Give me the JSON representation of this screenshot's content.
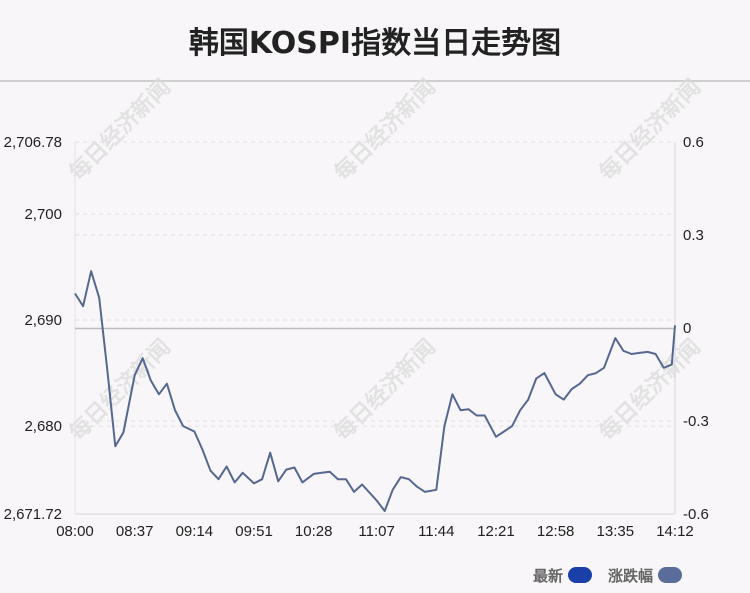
{
  "title": "韩国KOSPI指数当日走势图",
  "watermark": "每日经济新闻",
  "colors": {
    "latest": "#1a3fa8",
    "change": "#5a6d9a",
    "line": "#56688f",
    "baseline": "#bdbdbd",
    "grid": "#e2dfe2"
  },
  "legend": {
    "latest_label": "最新",
    "change_label": "涨跌幅"
  },
  "chart_data": {
    "type": "line",
    "xlabel": "",
    "ylabel": "",
    "x_ticks": [
      "08:00",
      "08:37",
      "09:14",
      "09:51",
      "10:28",
      "11:07",
      "11:44",
      "12:21",
      "12:58",
      "13:35",
      "14:12"
    ],
    "y_left_ticks": [
      "2,706.78",
      "2,700",
      "2,690",
      "2,680",
      "2,671.72"
    ],
    "y_left_tick_values": [
      2706.78,
      2700,
      2690,
      2680,
      2671.72
    ],
    "y_right_ticks": [
      "0.6",
      "0.3",
      "0",
      "-0.3",
      "-0.6"
    ],
    "y_right_tick_values": [
      0.6,
      0.3,
      0,
      -0.3,
      -0.6
    ],
    "ylim": [
      2671.72,
      2706.78
    ],
    "ylim_right": [
      -0.6,
      0.6
    ],
    "baseline": 2689.2,
    "grid": true,
    "series": [
      {
        "x": [
          "08:00",
          "08:05",
          "08:10",
          "08:15",
          "08:20",
          "08:25",
          "08:30",
          "08:37",
          "08:42",
          "08:47",
          "08:52",
          "08:57",
          "09:02",
          "09:07",
          "09:14",
          "09:19",
          "09:24",
          "09:29",
          "09:34",
          "09:39",
          "09:44",
          "09:51",
          "09:56",
          "10:01",
          "10:06",
          "10:11",
          "10:16",
          "10:21",
          "10:28",
          "10:33",
          "10:38",
          "10:43",
          "10:48",
          "10:53",
          "10:58",
          "11:07",
          "11:12",
          "11:17",
          "11:22",
          "11:27",
          "11:32",
          "11:37",
          "11:44",
          "11:49",
          "11:54",
          "11:59",
          "12:04",
          "12:09",
          "12:14",
          "12:21",
          "12:26",
          "12:31",
          "12:36",
          "12:41",
          "12:46",
          "12:51",
          "12:58",
          "13:03",
          "13:08",
          "13:13",
          "13:18",
          "13:23",
          "13:28",
          "13:35",
          "13:40",
          "13:45",
          "13:50",
          "13:55",
          "14:00",
          "14:05",
          "14:10",
          "14:12"
        ],
        "values": [
          2692.5,
          2691.3,
          2694.6,
          2692.1,
          2685.3,
          2678.1,
          2679.4,
          2684.8,
          2686.4,
          2684.3,
          2683.0,
          2684.0,
          2681.5,
          2680.0,
          2679.5,
          2677.8,
          2675.8,
          2675.0,
          2676.2,
          2674.7,
          2675.6,
          2674.6,
          2675.0,
          2677.5,
          2674.8,
          2675.9,
          2676.1,
          2674.7,
          2675.5,
          2675.6,
          2675.7,
          2675.0,
          2675.0,
          2673.8,
          2674.5,
          2673.0,
          2672.0,
          2674.0,
          2675.2,
          2675.0,
          2674.3,
          2673.8,
          2674.0,
          2680.0,
          2683.0,
          2681.5,
          2681.6,
          2681.0,
          2681.0,
          2679.0,
          2679.5,
          2680.0,
          2681.5,
          2682.5,
          2684.5,
          2685.0,
          2683.0,
          2682.5,
          2683.5,
          2684.0,
          2684.8,
          2685.0,
          2685.5,
          2688.3,
          2687.1,
          2686.8,
          2686.9,
          2687.0,
          2686.8,
          2685.5,
          2685.8,
          2689.5
        ]
      }
    ]
  }
}
